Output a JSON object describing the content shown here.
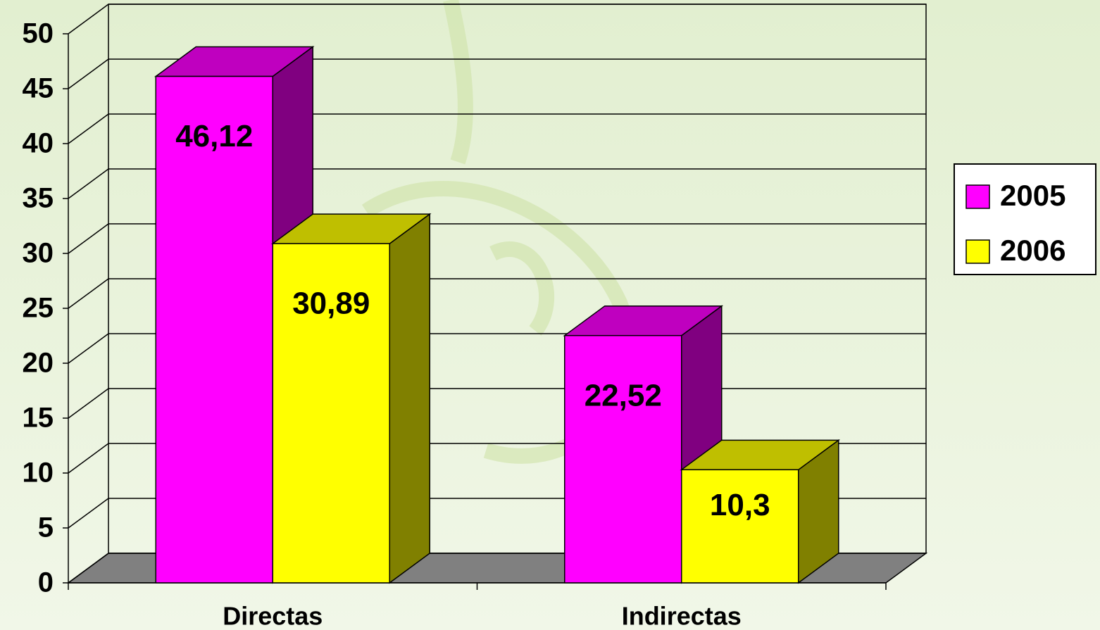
{
  "chart_data": {
    "type": "bar3d",
    "categories": [
      "Directas",
      "Indirectas"
    ],
    "series": [
      {
        "name": "2005",
        "color": "#ff00ff",
        "values": [
          46.12,
          22.52
        ],
        "value_labels": [
          "46,12",
          "22,52"
        ]
      },
      {
        "name": "2006",
        "color": "#ffff00",
        "values": [
          30.89,
          10.3
        ],
        "value_labels": [
          "30,89",
          "10,3"
        ]
      }
    ],
    "ylim": [
      0,
      50
    ],
    "yticks": [
      0,
      5,
      10,
      15,
      20,
      25,
      30,
      35,
      40,
      45,
      50
    ],
    "grid": true,
    "legend": "right"
  }
}
